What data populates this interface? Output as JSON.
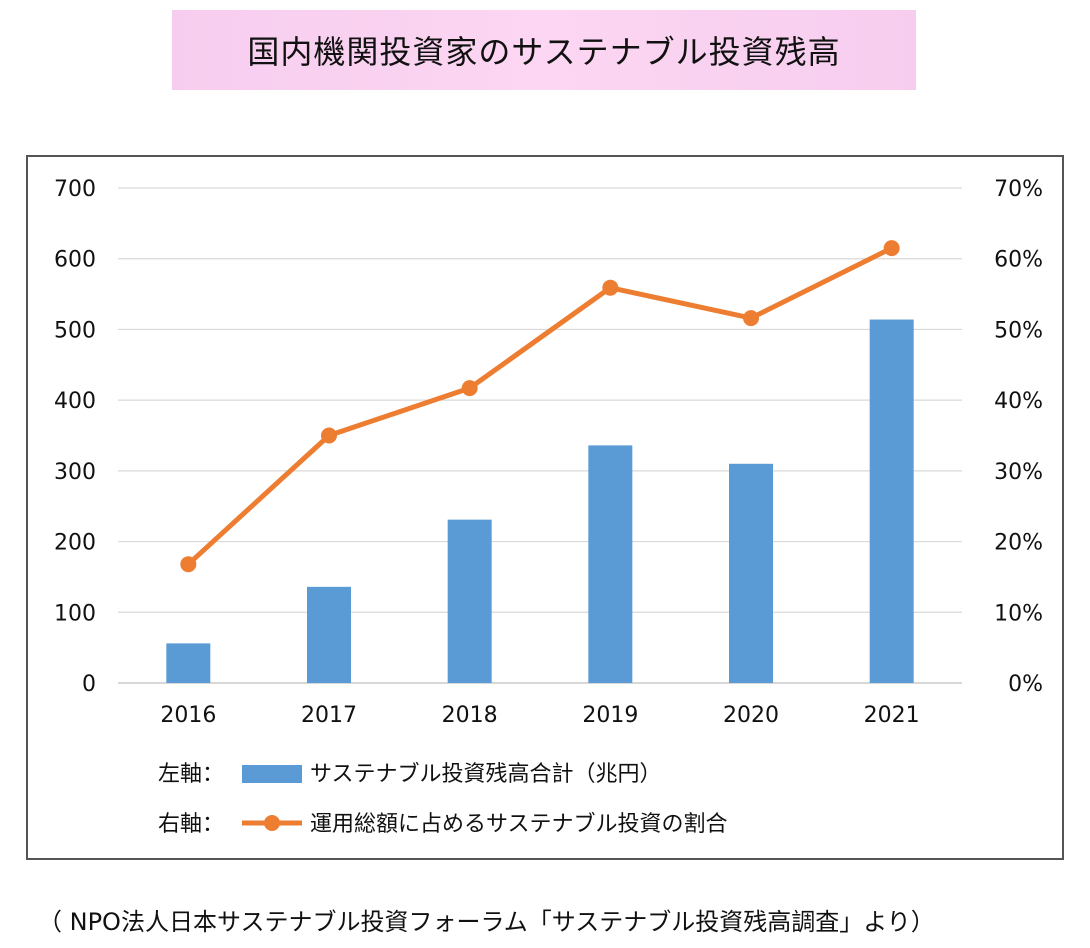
{
  "title": "国内機関投資家のサステナブル投資残高",
  "source": "（ NPO法人日本サステナブル投資フォーラム「サステナブル投資残高調査」より）",
  "chart_data": {
    "type": "bar",
    "categories": [
      "2016",
      "2017",
      "2018",
      "2019",
      "2020",
      "2021"
    ],
    "left_axis": {
      "min": 0,
      "max": 700,
      "ticks": [
        "0",
        "100",
        "200",
        "300",
        "400",
        "500",
        "600",
        "700"
      ]
    },
    "right_axis": {
      "min": 0,
      "max": 70,
      "ticks": [
        "0%",
        "10%",
        "20%",
        "30%",
        "40%",
        "50%",
        "60%",
        "70%"
      ]
    },
    "series": [
      {
        "name": "サステナブル投資残高合計（兆円）",
        "type": "bar",
        "axis": "left",
        "color": "#5b9bd5",
        "values": [
          56,
          136,
          231,
          336,
          310,
          514
        ]
      },
      {
        "name": "運用総額に占めるサステナブル投資の割合",
        "type": "line",
        "axis": "right",
        "color": "#ed7d31",
        "values": [
          16.8,
          35.0,
          41.7,
          55.9,
          51.6,
          61.5
        ]
      }
    ],
    "grid": true,
    "legend": [
      {
        "prefix": "左軸：",
        "label": "サステナブル投資残高合計（兆円）"
      },
      {
        "prefix": "右軸：",
        "label": "運用総額に占めるサステナブル投資の割合"
      }
    ]
  }
}
